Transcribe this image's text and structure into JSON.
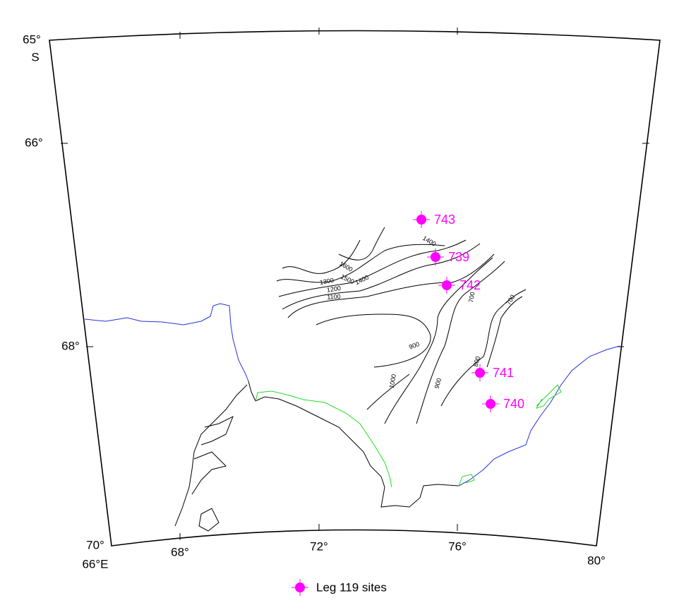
{
  "map": {
    "lat_labels": [
      "65°",
      "S",
      "66°",
      "68°",
      "70°"
    ],
    "lon_labels": [
      "66°E",
      "68°",
      "72°",
      "76°",
      "80°"
    ],
    "sites": [
      {
        "label": "743"
      },
      {
        "label": "739"
      },
      {
        "label": "742"
      },
      {
        "label": "741"
      },
      {
        "label": "740"
      }
    ],
    "contour_labels": [
      "1600",
      "1500",
      "1400",
      "1300",
      "1200",
      "1100",
      "1400",
      "900",
      "1000",
      "900",
      "800",
      "700",
      "700"
    ],
    "legend": "Leg 119 sites"
  }
}
